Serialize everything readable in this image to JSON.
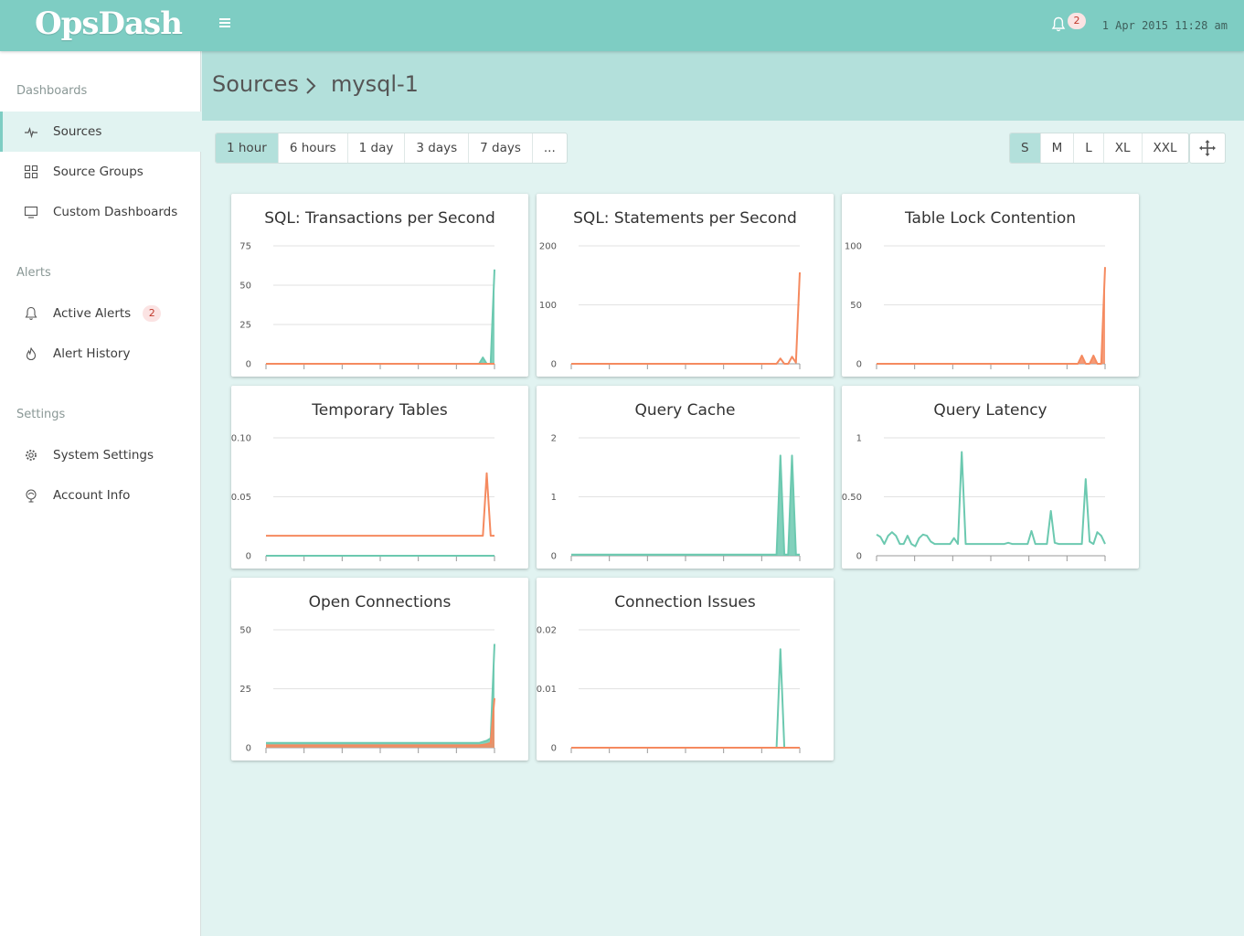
{
  "app": {
    "title": "OpsDash"
  },
  "topbar": {
    "notification_count": "2",
    "datetime": "1 Apr 2015 11:28 am"
  },
  "sidebar": {
    "sections": [
      {
        "heading": "Dashboards",
        "items": [
          {
            "label": "Sources",
            "icon": "pulse-icon",
            "active": true
          },
          {
            "label": "Source Groups",
            "icon": "grid-icon"
          },
          {
            "label": "Custom Dashboards",
            "icon": "monitor-icon"
          }
        ]
      },
      {
        "heading": "Alerts",
        "items": [
          {
            "label": "Active Alerts",
            "icon": "bell-icon",
            "badge": "2"
          },
          {
            "label": "Alert History",
            "icon": "flame-icon"
          }
        ]
      },
      {
        "heading": "Settings",
        "items": [
          {
            "label": "System Settings",
            "icon": "gear-icon"
          },
          {
            "label": "Account Info",
            "icon": "globe-icon"
          }
        ]
      }
    ]
  },
  "breadcrumb": {
    "parent": "Sources",
    "current": "mysql-1"
  },
  "time_ranges": {
    "options": [
      "1 hour",
      "6 hours",
      "1 day",
      "3 days",
      "7 days",
      "..."
    ],
    "selected": "1 hour"
  },
  "sizes": {
    "options": [
      "S",
      "M",
      "L",
      "XL",
      "XXL"
    ],
    "selected": "S"
  },
  "colors": {
    "teal": "#6cc9b0",
    "orange": "#f58a5f",
    "accent": "#7ecdc3"
  },
  "chart_data": [
    {
      "type": "line",
      "title": "SQL: Transactions per Second",
      "ylim": [
        0,
        75
      ],
      "yticks": [
        "75",
        "50",
        "25",
        "0"
      ],
      "series": [
        {
          "name": "series-1",
          "color": "#6cc9b0",
          "fill": true,
          "values": [
            0,
            0,
            0,
            0,
            0,
            0,
            0,
            0,
            0,
            0,
            0,
            0,
            0,
            0,
            0,
            0,
            0,
            0,
            0,
            0,
            0,
            0,
            0,
            0,
            0,
            0,
            0,
            0,
            0,
            0,
            0,
            0,
            0,
            0,
            0,
            0,
            0,
            0,
            0,
            0,
            0,
            0,
            0,
            0,
            0,
            0,
            0,
            0,
            0,
            0,
            0,
            0,
            0,
            0,
            0,
            0,
            4,
            0,
            0,
            60
          ]
        },
        {
          "name": "series-2",
          "color": "#f58a5f",
          "fill": false,
          "values": [
            0,
            0,
            0,
            0,
            0,
            0,
            0,
            0,
            0,
            0,
            0,
            0,
            0,
            0,
            0,
            0,
            0,
            0,
            0,
            0,
            0,
            0,
            0,
            0,
            0,
            0,
            0,
            0,
            0,
            0,
            0,
            0,
            0,
            0,
            0,
            0,
            0,
            0,
            0,
            0,
            0,
            0,
            0,
            0,
            0,
            0,
            0,
            0,
            0,
            0,
            0,
            0,
            0,
            0,
            0,
            0,
            0,
            0,
            0,
            0
          ]
        }
      ]
    },
    {
      "type": "line",
      "title": "SQL: Statements per Second",
      "ylim": [
        0,
        200
      ],
      "yticks": [
        "200",
        "100",
        "0"
      ],
      "series": [
        {
          "name": "series-1",
          "color": "#f58a5f",
          "fill": false,
          "values": [
            0,
            0,
            0,
            0,
            0,
            0,
            0,
            0,
            0,
            0,
            0,
            0,
            0,
            0,
            0,
            0,
            0,
            0,
            0,
            0,
            0,
            0,
            0,
            0,
            0,
            0,
            0,
            0,
            0,
            0,
            0,
            0,
            0,
            0,
            0,
            0,
            0,
            0,
            0,
            0,
            0,
            0,
            0,
            0,
            0,
            0,
            0,
            0,
            0,
            0,
            0,
            0,
            0,
            0,
            9,
            0,
            0,
            12,
            2,
            155
          ]
        }
      ]
    },
    {
      "type": "line",
      "title": "Table Lock Contention",
      "ylim": [
        0,
        100
      ],
      "yticks": [
        "100",
        "50",
        "0"
      ],
      "series": [
        {
          "name": "series-1",
          "color": "#f58a5f",
          "fill": true,
          "values": [
            0,
            0,
            0,
            0,
            0,
            0,
            0,
            0,
            0,
            0,
            0,
            0,
            0,
            0,
            0,
            0,
            0,
            0,
            0,
            0,
            0,
            0,
            0,
            0,
            0,
            0,
            0,
            0,
            0,
            0,
            0,
            0,
            0,
            0,
            0,
            0,
            0,
            0,
            0,
            0,
            0,
            0,
            0,
            0,
            0,
            0,
            0,
            0,
            0,
            0,
            0,
            0,
            0,
            7,
            0,
            0,
            7,
            0,
            0,
            82
          ]
        }
      ]
    },
    {
      "type": "line",
      "title": "Temporary Tables",
      "ylim": [
        0,
        0.1
      ],
      "yticks": [
        "0.10",
        "0.05",
        "0"
      ],
      "series": [
        {
          "name": "series-1",
          "color": "#f58a5f",
          "fill": false,
          "values": [
            0.017,
            0.017,
            0.017,
            0.017,
            0.017,
            0.017,
            0.017,
            0.017,
            0.017,
            0.017,
            0.017,
            0.017,
            0.017,
            0.017,
            0.017,
            0.017,
            0.017,
            0.017,
            0.017,
            0.017,
            0.017,
            0.017,
            0.017,
            0.017,
            0.017,
            0.017,
            0.017,
            0.017,
            0.017,
            0.017,
            0.017,
            0.017,
            0.017,
            0.017,
            0.017,
            0.017,
            0.017,
            0.017,
            0.017,
            0.017,
            0.017,
            0.017,
            0.017,
            0.017,
            0.017,
            0.017,
            0.017,
            0.017,
            0.017,
            0.017,
            0.017,
            0.017,
            0.017,
            0.017,
            0.017,
            0.017,
            0.017,
            0.07,
            0.017,
            0.017
          ]
        },
        {
          "name": "series-2",
          "color": "#6cc9b0",
          "fill": false,
          "values": [
            0,
            0,
            0,
            0,
            0,
            0,
            0,
            0,
            0,
            0,
            0,
            0,
            0,
            0,
            0,
            0,
            0,
            0,
            0,
            0,
            0,
            0,
            0,
            0,
            0,
            0,
            0,
            0,
            0,
            0,
            0,
            0,
            0,
            0,
            0,
            0,
            0,
            0,
            0,
            0,
            0,
            0,
            0,
            0,
            0,
            0,
            0,
            0,
            0,
            0,
            0,
            0,
            0,
            0,
            0,
            0,
            0,
            0,
            0,
            0
          ]
        }
      ]
    },
    {
      "type": "line",
      "title": "Query Cache",
      "ylim": [
        0,
        2
      ],
      "yticks": [
        "2",
        "1",
        "0"
      ],
      "series": [
        {
          "name": "series-1",
          "color": "#6cc9b0",
          "fill": true,
          "values": [
            0.02,
            0.02,
            0.02,
            0.02,
            0.02,
            0.02,
            0.02,
            0.02,
            0.02,
            0.02,
            0.02,
            0.02,
            0.02,
            0.02,
            0.02,
            0.02,
            0.02,
            0.02,
            0.02,
            0.02,
            0.02,
            0.02,
            0.02,
            0.02,
            0.02,
            0.02,
            0.02,
            0.02,
            0.02,
            0.02,
            0.02,
            0.02,
            0.02,
            0.02,
            0.02,
            0.02,
            0.02,
            0.02,
            0.02,
            0.02,
            0.02,
            0.02,
            0.02,
            0.02,
            0.02,
            0.02,
            0.02,
            0.02,
            0.02,
            0.02,
            0.02,
            0.02,
            0.02,
            0.02,
            1.7,
            0.02,
            0.02,
            1.7,
            0.02,
            0.02
          ]
        }
      ]
    },
    {
      "type": "line",
      "title": "Query Latency",
      "ylim": [
        0,
        1
      ],
      "yticks": [
        "1",
        "0.50",
        "0"
      ],
      "series": [
        {
          "name": "series-1",
          "color": "#6cc9b0",
          "fill": false,
          "values": [
            0.18,
            0.16,
            0.1,
            0.17,
            0.2,
            0.17,
            0.1,
            0.1,
            0.17,
            0.1,
            0.08,
            0.15,
            0.18,
            0.17,
            0.12,
            0.1,
            0.1,
            0.1,
            0.1,
            0.1,
            0.15,
            0.1,
            0.88,
            0.1,
            0.1,
            0.1,
            0.1,
            0.1,
            0.1,
            0.1,
            0.1,
            0.1,
            0.1,
            0.1,
            0.11,
            0.1,
            0.1,
            0.1,
            0.1,
            0.1,
            0.21,
            0.1,
            0.1,
            0.1,
            0.1,
            0.38,
            0.11,
            0.1,
            0.1,
            0.1,
            0.1,
            0.1,
            0.1,
            0.1,
            0.65,
            0.12,
            0.1,
            0.2,
            0.17,
            0.1
          ]
        }
      ]
    },
    {
      "type": "line",
      "title": "Open Connections",
      "ylim": [
        0,
        50
      ],
      "yticks": [
        "50",
        "25",
        "0"
      ],
      "series": [
        {
          "name": "series-1",
          "color": "#6cc9b0",
          "fill": true,
          "values": [
            2,
            2,
            2,
            2,
            2,
            2,
            2,
            2,
            2,
            2,
            2,
            2,
            2,
            2,
            2,
            2,
            2,
            2,
            2,
            2,
            2,
            2,
            2,
            2,
            2,
            2,
            2,
            2,
            2,
            2,
            2,
            2,
            2,
            2,
            2,
            2,
            2,
            2,
            2,
            2,
            2,
            2,
            2,
            2,
            2,
            2,
            2,
            2,
            2,
            2,
            2,
            2,
            2,
            2,
            2,
            2,
            2.5,
            3,
            4,
            44
          ]
        },
        {
          "name": "series-2",
          "color": "#f58a5f",
          "fill": true,
          "values": [
            1,
            1,
            1,
            1,
            1,
            1,
            1,
            1,
            1,
            1,
            1,
            1,
            1,
            1,
            1,
            1,
            1,
            1,
            1,
            1,
            1,
            1,
            1,
            1,
            1,
            1,
            1,
            1,
            1,
            1,
            1,
            1,
            1,
            1,
            1,
            1,
            1,
            1,
            1,
            1,
            1,
            1,
            1,
            1,
            1,
            1,
            1,
            1,
            1,
            1,
            1,
            1,
            1,
            1,
            1,
            1,
            1.2,
            1.5,
            2,
            21
          ]
        }
      ]
    },
    {
      "type": "line",
      "title": "Connection Issues",
      "ylim": [
        0,
        0.02
      ],
      "yticks": [
        "0.02",
        "0.01",
        "0"
      ],
      "series": [
        {
          "name": "series-1",
          "color": "#6cc9b0",
          "fill": false,
          "values": [
            0,
            0,
            0,
            0,
            0,
            0,
            0,
            0,
            0,
            0,
            0,
            0,
            0,
            0,
            0,
            0,
            0,
            0,
            0,
            0,
            0,
            0,
            0,
            0,
            0,
            0,
            0,
            0,
            0,
            0,
            0,
            0,
            0,
            0,
            0,
            0,
            0,
            0,
            0,
            0,
            0,
            0,
            0,
            0,
            0,
            0,
            0,
            0,
            0,
            0,
            0,
            0,
            0,
            0,
            0.0167,
            0,
            0,
            0,
            0,
            0
          ]
        },
        {
          "name": "series-2",
          "color": "#f58a5f",
          "fill": false,
          "values": [
            0,
            0,
            0,
            0,
            0,
            0,
            0,
            0,
            0,
            0,
            0,
            0,
            0,
            0,
            0,
            0,
            0,
            0,
            0,
            0,
            0,
            0,
            0,
            0,
            0,
            0,
            0,
            0,
            0,
            0,
            0,
            0,
            0,
            0,
            0,
            0,
            0,
            0,
            0,
            0,
            0,
            0,
            0,
            0,
            0,
            0,
            0,
            0,
            0,
            0,
            0,
            0,
            0,
            0,
            0,
            0,
            0,
            0,
            0,
            0
          ]
        }
      ]
    }
  ]
}
